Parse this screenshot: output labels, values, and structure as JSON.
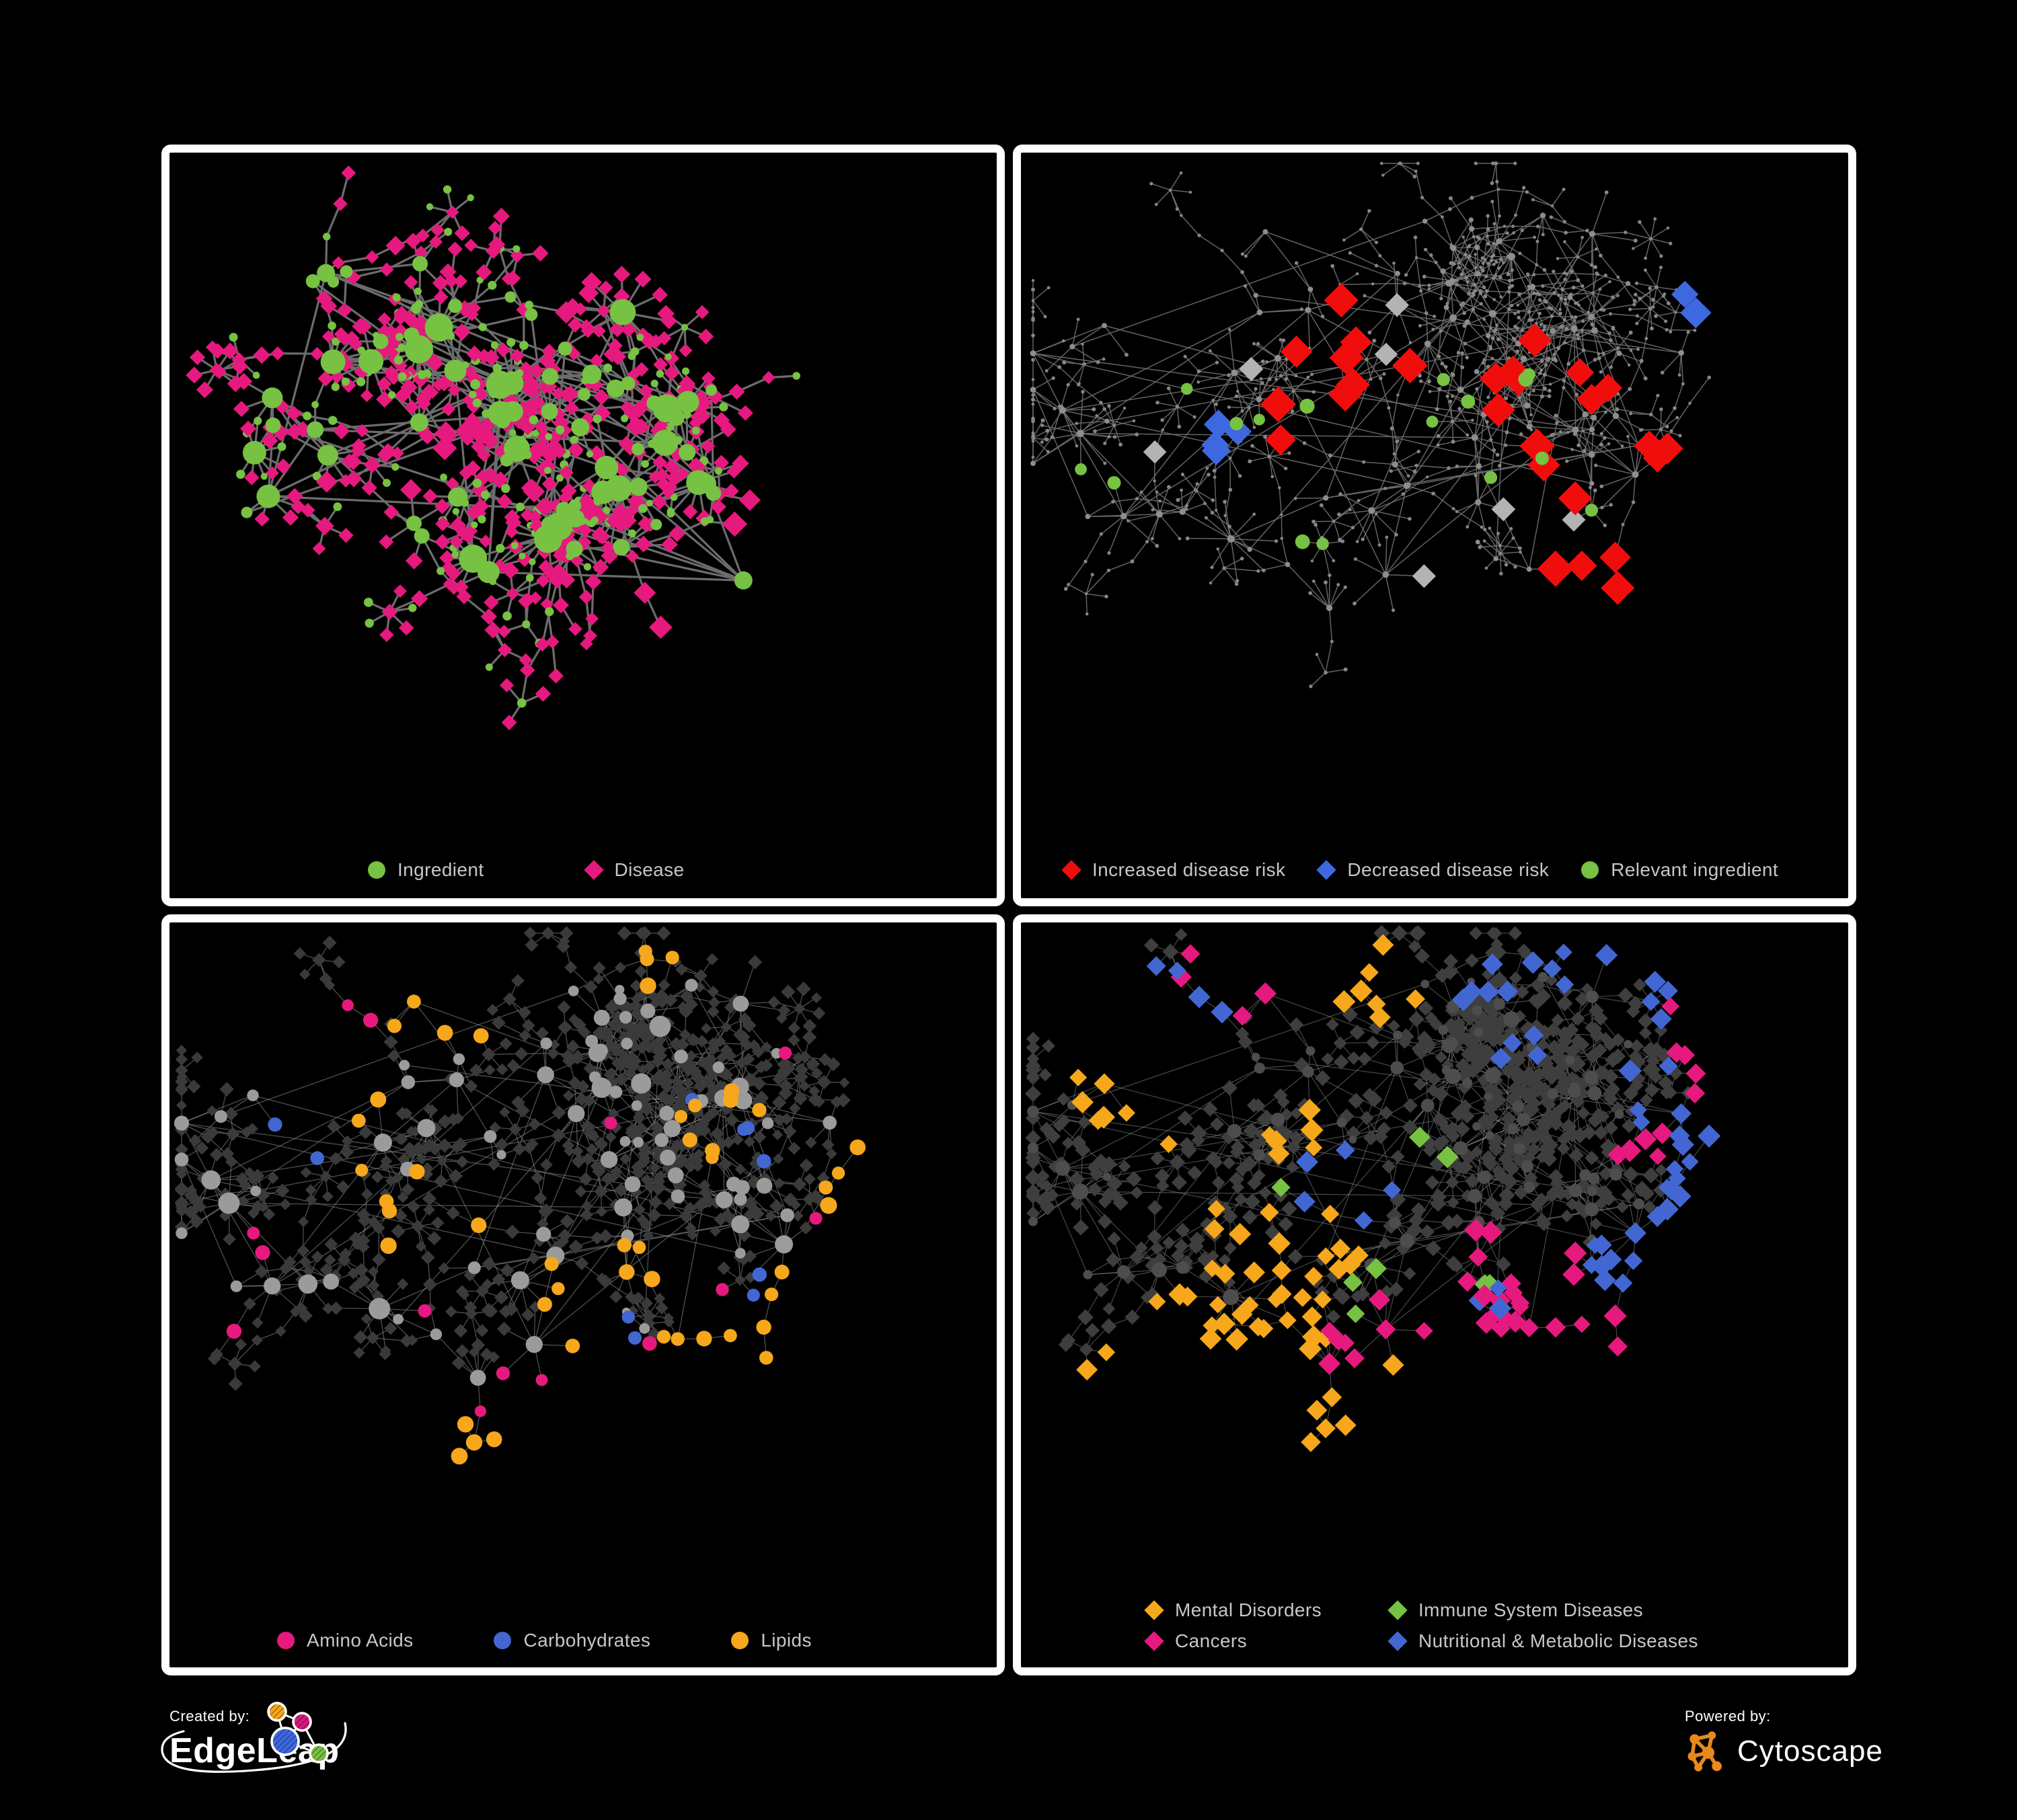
{
  "figure": {
    "background": "#000000",
    "panel_border_color": "#FFFFFF",
    "legend_text_color": "#C7C7C7"
  },
  "panels": [
    {
      "id": "ingredients-diseases",
      "legend": [
        {
          "label": "Ingredient",
          "shape": "circle",
          "color": "#77C143"
        },
        {
          "label": "Disease",
          "shape": "diamond",
          "color": "#E6197E"
        }
      ],
      "network": {
        "seed": 11,
        "clusters": 6,
        "hubs": 74,
        "spread": 195,
        "leaf_dist": 50,
        "fan_max": 12,
        "tendril_step": 46,
        "max_y": 1010,
        "edge": {
          "color": "#6C6C6C",
          "width": 3.2,
          "opacity": 1
        },
        "hub_style": {
          "shape": "circle",
          "color": "#77C143",
          "r_base": 6.5,
          "r_deg": 1.0,
          "r_max": 21
        },
        "leaf_styles": [
          {
            "shape": "diamond",
            "color": "#E6197E",
            "size": 9,
            "weight": 0.74
          },
          {
            "shape": "circle",
            "color": "#77C143",
            "size": 6,
            "weight": 0.26
          }
        ],
        "highlights": [
          {
            "shape": "diamond",
            "color": "#E6197E",
            "size": 13,
            "count": 16,
            "leaf_only": true,
            "regions": [
              [
                0.3,
                0.35,
                0.2
              ],
              [
                0.55,
                0.45,
                0.2
              ],
              [
                0.45,
                0.25,
                0.15
              ],
              [
                0.35,
                0.6,
                0.15
              ],
              [
                0.65,
                0.7,
                0.1
              ]
            ]
          }
        ]
      }
    },
    {
      "id": "disease-risk",
      "legend": [
        {
          "label": "Increased disease risk",
          "shape": "diamond",
          "color": "#F20D0D"
        },
        {
          "label": "Decreased disease risk",
          "shape": "diamond",
          "color": "#3D68E0"
        },
        {
          "label": "Relevant ingredient",
          "shape": "circle",
          "color": "#77C143"
        }
      ],
      "network": {
        "seed": 42,
        "clusters": 7,
        "hubs": 88,
        "spread": 235,
        "leaf_dist": 42,
        "fan_max": 9,
        "tendril_step": 40,
        "max_y": 1010,
        "edge": {
          "color": "#6E6E6E",
          "width": 1.5,
          "opacity": 0.9
        },
        "hub_style": {
          "shape": "circle",
          "color": "#8E8E8E",
          "r_base": 3.2,
          "r_deg": 0.18,
          "r_max": 5.5
        },
        "leaf_styles": [
          {
            "shape": "circle",
            "color": "#868686",
            "size": 2.6,
            "weight": 1
          }
        ],
        "highlights": [
          {
            "shape": "diamond",
            "color": "#F20D0D",
            "size": 19,
            "count": 27,
            "regions": [
              [
                0.42,
                0.32,
                0.1
              ],
              [
                0.52,
                0.38,
                0.07
              ],
              [
                0.6,
                0.3,
                0.05
              ],
              [
                0.35,
                0.28,
                0.05
              ],
              [
                0.72,
                0.33,
                0.04
              ],
              [
                0.62,
                0.45,
                0.05
              ],
              [
                0.78,
                0.45,
                0.03
              ],
              [
                0.72,
                0.78,
                0.03
              ],
              [
                0.79,
                0.86,
                0.02
              ],
              [
                0.3,
                0.38,
                0.03
              ]
            ]
          },
          {
            "shape": "diamond",
            "color": "#B3B3B3",
            "size": 15,
            "count": 7,
            "regions": [
              [
                0.44,
                0.27,
                0.05
              ],
              [
                0.3,
                0.32,
                0.04
              ],
              [
                0.58,
                0.48,
                0.04
              ],
              [
                0.52,
                0.56,
                0.03
              ],
              [
                0.66,
                0.6,
                0.02
              ],
              [
                0.15,
                0.44,
                0.02
              ]
            ]
          },
          {
            "shape": "diamond",
            "color": "#3D68E0",
            "size": 17,
            "count": 6,
            "regions": [
              [
                0.27,
                0.39,
                0.03
              ],
              [
                0.25,
                0.43,
                0.02
              ],
              [
                0.92,
                0.18,
                0.02
              ]
            ]
          },
          {
            "shape": "circle",
            "color": "#77C143",
            "size": 10,
            "count": 16,
            "regions": [
              [
                0.43,
                0.34,
                0.1
              ],
              [
                0.25,
                0.36,
                0.07
              ],
              [
                0.55,
                0.42,
                0.05
              ],
              [
                0.66,
                0.54,
                0.03
              ],
              [
                0.1,
                0.48,
                0.02
              ],
              [
                0.35,
                0.6,
                0.03
              ],
              [
                0.58,
                0.3,
                0.04
              ]
            ]
          }
        ]
      }
    },
    {
      "id": "nutrient-classes",
      "legend": [
        {
          "label": "Amino Acids",
          "shape": "circle",
          "color": "#E6197E"
        },
        {
          "label": "Carbohydrates",
          "shape": "circle",
          "color": "#4367D2"
        },
        {
          "label": "Lipids",
          "shape": "circle",
          "color": "#F6A71B"
        }
      ],
      "network": {
        "seed": 42,
        "clusters": 7,
        "hubs": 88,
        "spread": 235,
        "leaf_dist": 42,
        "fan_max": 9,
        "tendril_step": 40,
        "max_y": 1010,
        "edge": {
          "color": "#909090",
          "width": 1.3,
          "opacity": 0.55
        },
        "hub_style": {
          "shape": "circle",
          "color": "#9B9B9B",
          "r_base": 5.5,
          "r_deg": 0.8,
          "r_max": 16
        },
        "leaf_styles": [
          {
            "shape": "diamond",
            "color": "#3A3A3A",
            "size": 7.5,
            "weight": 1
          }
        ],
        "highlights": [
          {
            "shape": "circle",
            "color": "#F6A71B",
            "size": 11,
            "count": 48,
            "regions": [
              [
                0.68,
                0.3,
                0.06
              ],
              [
                0.64,
                0.26,
                0.04
              ],
              [
                0.58,
                0.5,
                0.04
              ],
              [
                0.45,
                0.55,
                0.04
              ],
              [
                0.3,
                0.45,
                0.07
              ],
              [
                0.66,
                0.68,
                0.04
              ],
              [
                0.85,
                0.62,
                0.04
              ],
              [
                0.25,
                0.3,
                0.05
              ],
              [
                0.45,
                0.88,
                0.02
              ],
              [
                0.88,
                0.4,
                0.03
              ],
              [
                0.35,
                0.12,
                0.04
              ],
              [
                0.6,
                0.08,
                0.03
              ]
            ]
          },
          {
            "shape": "circle",
            "color": "#4367D2",
            "size": 10,
            "count": 10,
            "regions": [
              [
                0.66,
                0.28,
                0.04
              ],
              [
                0.7,
                0.33,
                0.03
              ],
              [
                0.15,
                0.32,
                0.02
              ],
              [
                0.8,
                0.68,
                0.03
              ],
              [
                0.52,
                0.62,
                0.02
              ]
            ]
          },
          {
            "shape": "circle",
            "color": "#E6197E",
            "size": 10,
            "count": 14,
            "regions": [
              [
                0.1,
                0.45,
                0.03
              ],
              [
                0.22,
                0.12,
                0.03
              ],
              [
                0.52,
                0.28,
                0.03
              ],
              [
                0.35,
                0.8,
                0.03
              ],
              [
                0.55,
                0.78,
                0.03
              ],
              [
                0.68,
                0.62,
                0.02
              ],
              [
                0.3,
                0.57,
                0.02
              ],
              [
                0.75,
                0.2,
                0.02
              ],
              [
                0.9,
                0.55,
                0.02
              ],
              [
                0.45,
                0.97,
                0.01
              ],
              [
                0.05,
                0.6,
                0.02
              ],
              [
                0.6,
                0.92,
                0.02
              ]
            ]
          }
        ]
      }
    },
    {
      "id": "disease-categories",
      "legend": [
        {
          "label": "Mental Disorders",
          "shape": "diamond",
          "color": "#F6A71B"
        },
        {
          "label": "Immune System Diseases",
          "shape": "diamond",
          "color": "#77C143"
        },
        {
          "label": "Cancers",
          "shape": "diamond",
          "color": "#E6197E"
        },
        {
          "label": "Nutritional & Metabolic Diseases",
          "shape": "diamond",
          "color": "#4367D2"
        }
      ],
      "network": {
        "seed": 42,
        "clusters": 7,
        "hubs": 88,
        "spread": 235,
        "leaf_dist": 42,
        "fan_max": 9,
        "tendril_step": 40,
        "max_y": 965,
        "edge": {
          "color": "#9C9C9C",
          "width": 1.1,
          "opacity": 0.5
        },
        "hub_style": {
          "shape": "circle",
          "color": "#4D4D4D",
          "r_base": 4.5,
          "r_deg": 0.6,
          "r_max": 12
        },
        "leaf_styles": [
          {
            "shape": "diamond",
            "color": "#3E3E3E",
            "size": 8.5,
            "weight": 1
          }
        ],
        "highlights": [
          {
            "shape": "diamond",
            "color": "#F6A71B",
            "size": 12,
            "count": 66,
            "regions": [
              [
                0.3,
                0.55,
                0.07
              ],
              [
                0.26,
                0.5,
                0.05
              ],
              [
                0.34,
                0.6,
                0.04
              ],
              [
                0.12,
                0.27,
                0.03
              ],
              [
                0.45,
                0.08,
                0.03
              ],
              [
                0.2,
                0.75,
                0.02
              ],
              [
                0.5,
                0.95,
                0.02
              ],
              [
                0.33,
                0.32,
                0.03
              ],
              [
                0.22,
                0.6,
                0.04
              ],
              [
                0.38,
                0.5,
                0.03
              ]
            ]
          },
          {
            "shape": "diamond",
            "color": "#E6197E",
            "size": 12,
            "count": 44,
            "regions": [
              [
                0.62,
                0.58,
                0.06
              ],
              [
                0.56,
                0.52,
                0.04
              ],
              [
                0.68,
                0.65,
                0.04
              ],
              [
                0.91,
                0.16,
                0.03
              ],
              [
                0.5,
                0.73,
                0.03
              ],
              [
                0.36,
                0.85,
                0.02
              ],
              [
                0.75,
                0.35,
                0.02
              ],
              [
                0.58,
                0.63,
                0.04
              ],
              [
                0.25,
                0.05,
                0.03
              ]
            ]
          },
          {
            "shape": "diamond",
            "color": "#4367D2",
            "size": 12,
            "count": 56,
            "regions": [
              [
                0.9,
                0.78,
                0.05
              ],
              [
                0.85,
                0.72,
                0.04
              ],
              [
                0.75,
                0.25,
                0.05
              ],
              [
                0.85,
                0.35,
                0.04
              ],
              [
                0.55,
                0.12,
                0.05
              ],
              [
                0.65,
                0.05,
                0.03
              ],
              [
                0.95,
                0.55,
                0.03
              ],
              [
                0.4,
                0.4,
                0.03
              ],
              [
                0.18,
                0.12,
                0.03
              ],
              [
                0.7,
                0.9,
                0.03
              ],
              [
                0.88,
                0.1,
                0.04
              ],
              [
                0.6,
                0.2,
                0.03
              ]
            ]
          },
          {
            "shape": "diamond",
            "color": "#77C143",
            "size": 12,
            "count": 8,
            "regions": [
              [
                0.48,
                0.35,
                0.04
              ],
              [
                0.42,
                0.55,
                0.03
              ],
              [
                0.55,
                0.65,
                0.02
              ],
              [
                0.5,
                0.9,
                0.02
              ],
              [
                0.3,
                0.4,
                0.02
              ]
            ]
          }
        ]
      }
    }
  ],
  "footer": {
    "created_by": {
      "label": "Created by:",
      "brand": "EdgeLeap",
      "logo_colors": [
        "#F6A71B",
        "#D6197E",
        "#3D68E0",
        "#77C143"
      ]
    },
    "powered_by": {
      "label": "Powered by:",
      "brand": "Cytoscape",
      "icon_color": "#E8891C"
    }
  }
}
